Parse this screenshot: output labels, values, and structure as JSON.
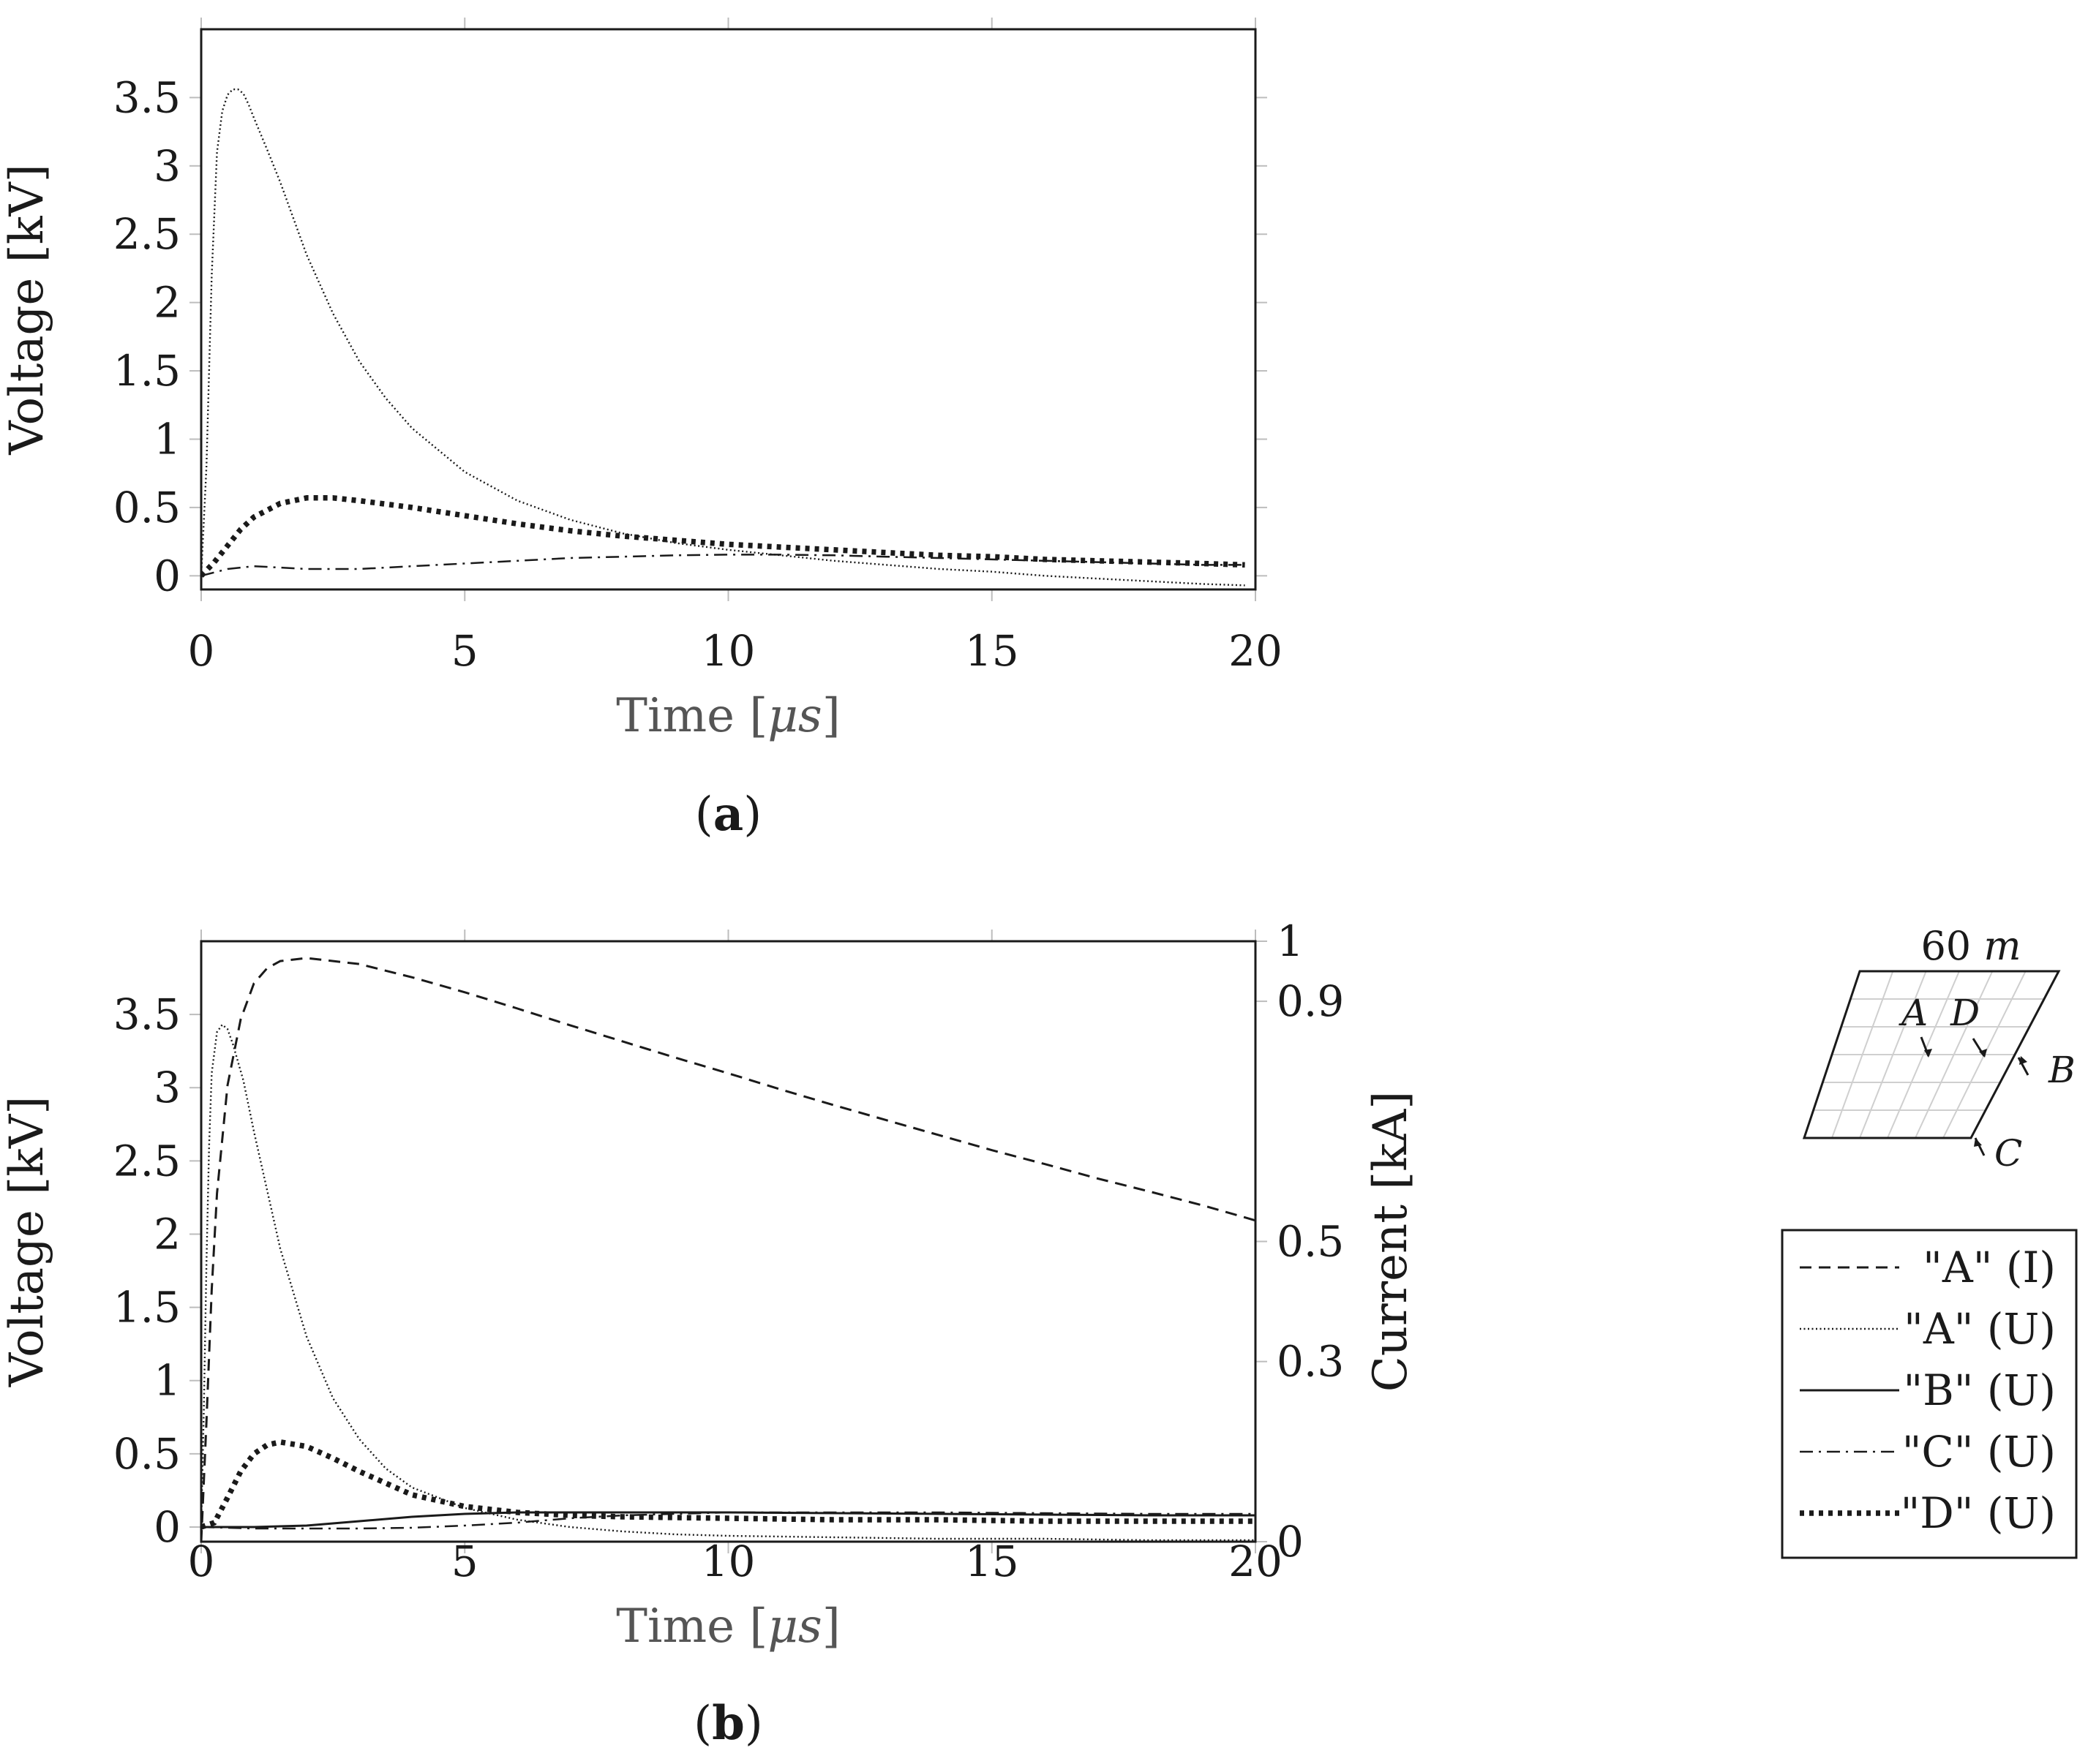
{
  "chart_data": [
    {
      "type": "line",
      "panel_label": "(a)",
      "panel_letter": "a",
      "xlabel": "Time [μs]",
      "xlabel_text": "Time [",
      "xlabel_unit": "μs",
      "xlabel_close": "]",
      "ylabel": "Voltage [kV]",
      "xlim": [
        0,
        20
      ],
      "ylim": [
        -0.1,
        4.0
      ],
      "xticks": [
        0,
        5,
        10,
        15,
        20
      ],
      "xtick_labels": [
        "0",
        "5",
        "10",
        "15",
        "20"
      ],
      "yticks": [
        0,
        0.5,
        1,
        1.5,
        2,
        2.5,
        3,
        3.5
      ],
      "ytick_labels": [
        "0",
        "0.5",
        "1",
        "1.5",
        "2",
        "2.5",
        "3",
        "3.5"
      ],
      "grid": false,
      "series": [
        {
          "name": "\"A\" (U)",
          "style": "dotted",
          "axis": "left",
          "x": [
            0,
            0.1,
            0.2,
            0.3,
            0.4,
            0.5,
            0.6,
            0.7,
            0.8,
            0.9,
            1.0,
            1.25,
            1.5,
            2,
            2.5,
            3,
            3.5,
            4,
            5,
            6,
            7,
            8,
            9,
            10,
            11,
            12,
            13,
            14,
            15,
            16,
            17,
            18,
            19,
            19.8
          ],
          "y": [
            0,
            0.8,
            2.2,
            3.1,
            3.4,
            3.52,
            3.56,
            3.56,
            3.53,
            3.45,
            3.35,
            3.12,
            2.88,
            2.35,
            1.92,
            1.57,
            1.3,
            1.08,
            0.76,
            0.55,
            0.41,
            0.31,
            0.24,
            0.19,
            0.15,
            0.11,
            0.08,
            0.05,
            0.03,
            0.0,
            -0.02,
            -0.04,
            -0.06,
            -0.07
          ]
        },
        {
          "name": "\"C\" (U)",
          "style": "dashdot",
          "axis": "left",
          "x": [
            0,
            0.5,
            1,
            1.5,
            2,
            3,
            4,
            5,
            6,
            7,
            8,
            9,
            10,
            11,
            12,
            13,
            14,
            15,
            16,
            17,
            18,
            19,
            19.8
          ],
          "y": [
            0,
            0.05,
            0.07,
            0.06,
            0.05,
            0.05,
            0.07,
            0.09,
            0.11,
            0.13,
            0.14,
            0.15,
            0.155,
            0.155,
            0.15,
            0.14,
            0.13,
            0.12,
            0.11,
            0.1,
            0.09,
            0.08,
            0.08
          ]
        },
        {
          "name": "\"D\" (U)",
          "style": "thick-dotted",
          "axis": "left",
          "x": [
            0,
            0.25,
            0.5,
            0.75,
            1,
            1.5,
            2,
            2.5,
            3,
            4,
            5,
            6,
            7,
            8,
            9,
            10,
            11,
            12,
            13,
            14,
            15,
            16,
            17,
            18,
            19,
            19.8
          ],
          "y": [
            0,
            0.1,
            0.22,
            0.34,
            0.43,
            0.53,
            0.57,
            0.57,
            0.55,
            0.5,
            0.44,
            0.38,
            0.33,
            0.29,
            0.26,
            0.23,
            0.21,
            0.19,
            0.17,
            0.15,
            0.14,
            0.12,
            0.11,
            0.1,
            0.09,
            0.08
          ]
        }
      ]
    },
    {
      "type": "line",
      "panel_label": "(b)",
      "panel_letter": "b",
      "xlabel": "Time [μs]",
      "xlabel_text": "Time [",
      "xlabel_unit": "μs",
      "xlabel_close": "]",
      "ylabel": "Voltage [kV]",
      "y2label": "Current [kA]",
      "xlim": [
        0,
        20
      ],
      "ylim": [
        -0.1,
        4.0
      ],
      "y2lim": [
        0,
        1
      ],
      "xticks": [
        0,
        5,
        10,
        15,
        20
      ],
      "xtick_labels": [
        "0",
        "5",
        "10",
        "15",
        "20"
      ],
      "yticks": [
        0,
        0.5,
        1,
        1.5,
        2,
        2.5,
        3,
        3.5
      ],
      "ytick_labels": [
        "0",
        "0.5",
        "1",
        "1.5",
        "2",
        "2.5",
        "3",
        "3.5"
      ],
      "y2ticks": [
        0,
        0.3,
        0.5,
        0.9,
        1
      ],
      "y2tick_labels": [
        "0",
        "0.3",
        "0.5",
        "0.9",
        "1"
      ],
      "grid": false,
      "legend_position": "right",
      "series": [
        {
          "name": "\"A\" (I)",
          "style": "dashed",
          "axis": "right",
          "x": [
            0,
            0.1,
            0.2,
            0.3,
            0.5,
            0.75,
            1,
            1.25,
            1.5,
            2,
            3,
            4,
            5,
            6,
            7,
            8,
            9,
            10,
            11,
            12,
            13,
            14,
            15,
            16,
            17,
            18,
            19,
            20
          ],
          "y": [
            0,
            0.2,
            0.42,
            0.58,
            0.76,
            0.87,
            0.93,
            0.955,
            0.967,
            0.972,
            0.962,
            0.94,
            0.915,
            0.888,
            0.86,
            0.833,
            0.806,
            0.78,
            0.753,
            0.727,
            0.702,
            0.677,
            0.652,
            0.629,
            0.605,
            0.583,
            0.56,
            0.535
          ]
        },
        {
          "name": "\"A\" (U)",
          "style": "dotted",
          "axis": "left",
          "x": [
            0,
            0.05,
            0.1,
            0.15,
            0.2,
            0.3,
            0.4,
            0.5,
            0.6,
            0.8,
            1,
            1.25,
            1.5,
            2,
            2.5,
            3,
            3.5,
            4,
            5,
            6,
            7,
            8,
            9,
            10,
            12,
            14,
            16,
            18,
            20
          ],
          "y": [
            0,
            0.8,
            1.8,
            2.6,
            3.1,
            3.38,
            3.43,
            3.4,
            3.3,
            3.05,
            2.7,
            2.3,
            1.9,
            1.3,
            0.88,
            0.6,
            0.4,
            0.27,
            0.13,
            0.05,
            0.0,
            -0.03,
            -0.05,
            -0.06,
            -0.07,
            -0.08,
            -0.08,
            -0.09,
            -0.09
          ]
        },
        {
          "name": "\"B\" (U)",
          "style": "solid",
          "axis": "left",
          "x": [
            0,
            1,
            2,
            3,
            4,
            5,
            6,
            7,
            8,
            10,
            12,
            14,
            16,
            18,
            20
          ],
          "y": [
            0,
            0.0,
            0.01,
            0.04,
            0.07,
            0.09,
            0.1,
            0.1,
            0.1,
            0.1,
            0.095,
            0.09,
            0.085,
            0.08,
            0.08
          ]
        },
        {
          "name": "\"C\" (U)",
          "style": "dashdot",
          "axis": "left",
          "x": [
            0,
            1,
            2,
            3,
            4,
            5,
            6,
            7,
            8,
            10,
            12,
            14,
            16,
            18,
            20
          ],
          "y": [
            0,
            -0.01,
            -0.01,
            -0.01,
            -0.005,
            0.01,
            0.03,
            0.06,
            0.08,
            0.1,
            0.1,
            0.1,
            0.095,
            0.09,
            0.09
          ]
        },
        {
          "name": "\"D\" (U)",
          "style": "thick-dotted",
          "axis": "left",
          "x": [
            0,
            0.25,
            0.5,
            0.75,
            1,
            1.25,
            1.5,
            2,
            2.5,
            3,
            4,
            5,
            6,
            7,
            8,
            10,
            12,
            14,
            16,
            18,
            20
          ],
          "y": [
            0,
            0.03,
            0.2,
            0.38,
            0.5,
            0.56,
            0.58,
            0.55,
            0.47,
            0.38,
            0.22,
            0.14,
            0.1,
            0.08,
            0.07,
            0.06,
            0.05,
            0.05,
            0.04,
            0.04,
            0.04
          ]
        }
      ]
    }
  ],
  "inset": {
    "dimension_label": "60",
    "dimension_unit": "m",
    "points": [
      "A",
      "D",
      "B",
      "C"
    ]
  }
}
